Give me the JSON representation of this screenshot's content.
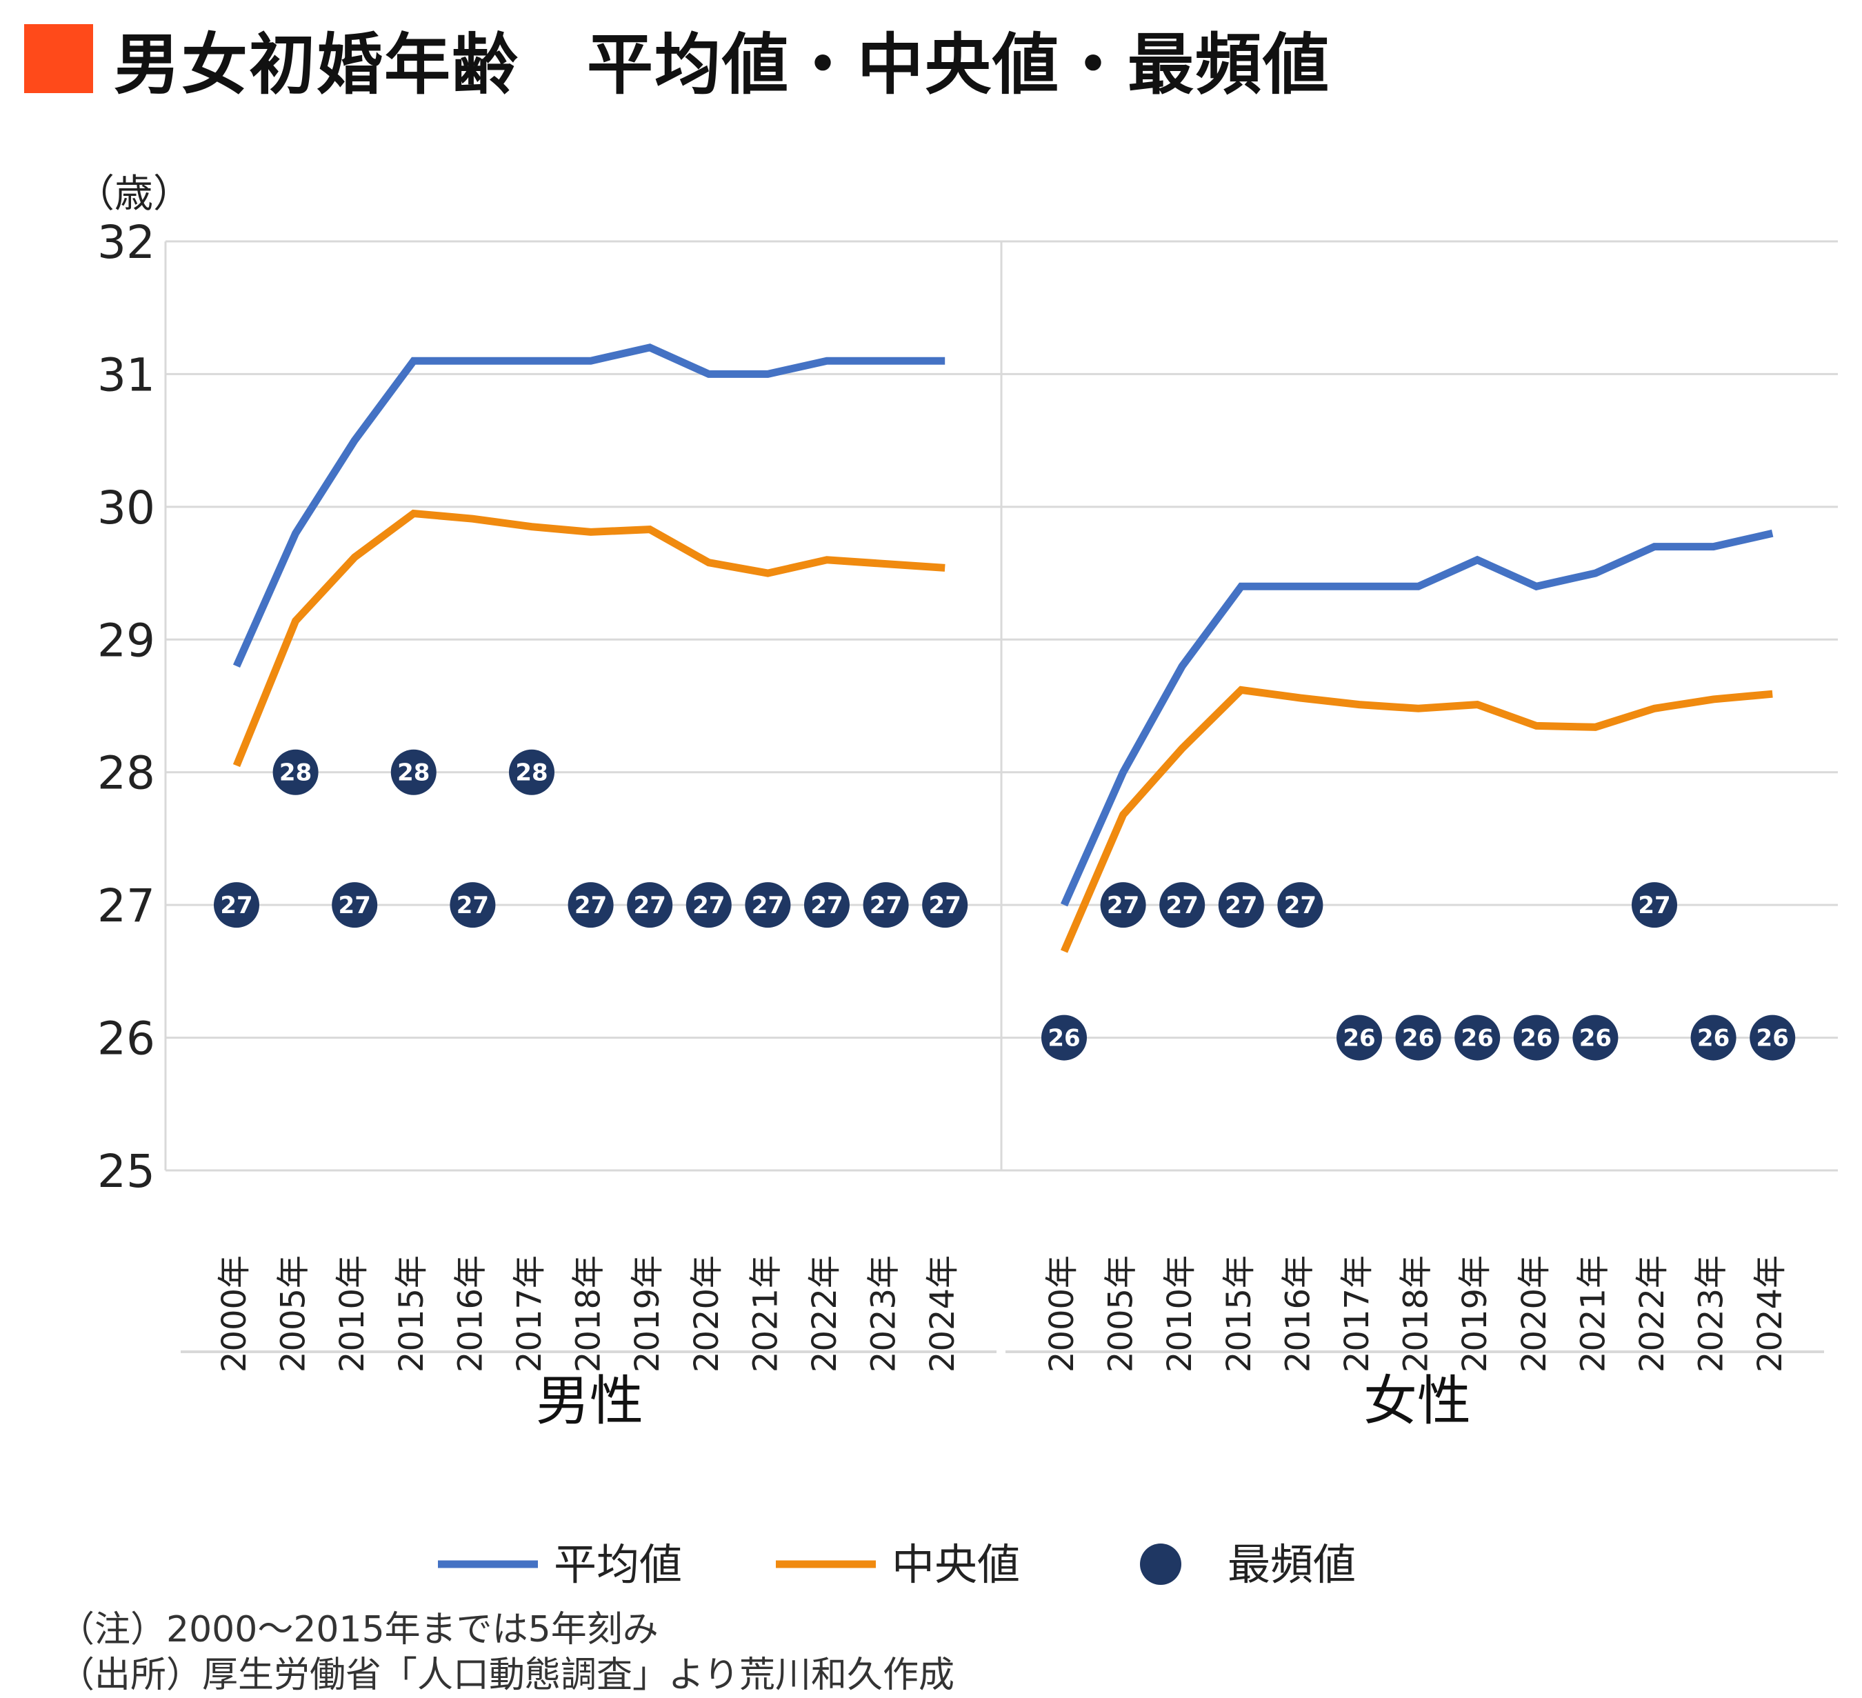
{
  "title": "男女初婚年齢　平均値・中央値・最頻値",
  "colors": {
    "title_mark": "#ff4a1a",
    "mean": "#4472c4",
    "median": "#f08a0f",
    "mode": "#1f3763",
    "grid": "#d9d9d9",
    "text": "#222222"
  },
  "chart_data": {
    "type": "line",
    "y_unit": "（歳）",
    "ylim": [
      25,
      32
    ],
    "yticks": [
      25,
      26,
      27,
      28,
      29,
      30,
      31,
      32
    ],
    "grid": true,
    "legend_position": "bottom",
    "categories": [
      "2000年",
      "2005年",
      "2010年",
      "2015年",
      "2016年",
      "2017年",
      "2018年",
      "2019年",
      "2020年",
      "2021年",
      "2022年",
      "2023年",
      "2024年"
    ],
    "groups": [
      {
        "label": "男性",
        "mean": [
          28.8,
          29.8,
          30.5,
          31.1,
          31.1,
          31.1,
          31.1,
          31.2,
          31.0,
          31.0,
          31.1,
          31.1,
          31.1
        ],
        "median": [
          28.05,
          29.14,
          29.62,
          29.95,
          29.91,
          29.85,
          29.81,
          29.83,
          29.58,
          29.5,
          29.6,
          29.57,
          29.54
        ],
        "mode": [
          27,
          28,
          27,
          28,
          27,
          28,
          27,
          27,
          27,
          27,
          27,
          27,
          27
        ]
      },
      {
        "label": "女性",
        "mean": [
          27.0,
          28.0,
          28.8,
          29.4,
          29.4,
          29.4,
          29.4,
          29.6,
          29.4,
          29.5,
          29.7,
          29.7,
          29.8
        ],
        "median": [
          26.65,
          27.68,
          28.18,
          28.62,
          28.56,
          28.51,
          28.48,
          28.51,
          28.35,
          28.34,
          28.48,
          28.55,
          28.59
        ],
        "mode": [
          26,
          27,
          27,
          27,
          27,
          26,
          26,
          26,
          26,
          26,
          27,
          26,
          26
        ]
      }
    ],
    "series": [
      {
        "name": "平均値",
        "key": "mean"
      },
      {
        "name": "中央値",
        "key": "median"
      },
      {
        "name": "最頻値",
        "key": "mode"
      }
    ]
  },
  "notes": [
    "（注）2000～2015年までは5年刻み",
    "（出所）厚生労働省「人口動態調査」より荒川和久作成"
  ]
}
